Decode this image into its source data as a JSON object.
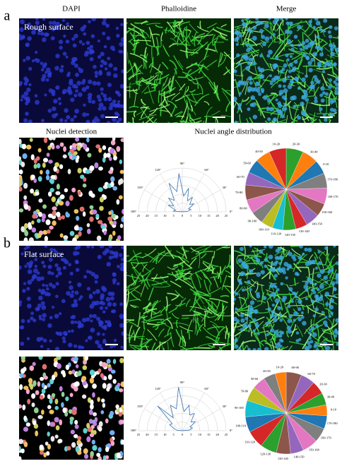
{
  "column_titles": [
    "DAPI",
    "Phalloidine",
    "Merge"
  ],
  "detection_title": "Nuclei detection",
  "distribution_title": "Nuclei angle distribution",
  "panels": [
    {
      "letter": "a",
      "image_label": "Rough surface",
      "polar": {
        "type": "polar-line",
        "color": "#4a7fb5",
        "angles": [
          5,
          15,
          25,
          35,
          45,
          55,
          65,
          75,
          85,
          95,
          105,
          115,
          125,
          135,
          145,
          155,
          165,
          175
        ],
        "values": [
          3,
          5,
          4,
          8,
          6,
          10,
          7,
          14,
          9,
          22,
          12,
          18,
          8,
          11,
          6,
          9,
          4,
          5
        ],
        "rlim": [
          0,
          25
        ],
        "rticks": [
          0,
          5,
          10,
          15,
          20,
          25
        ],
        "angle_ticks": [
          {
            "value": 0,
            "label": "0°"
          },
          {
            "value": 30,
            "label": "30°"
          },
          {
            "value": 60,
            "label": "60°"
          },
          {
            "value": 90,
            "label": "90°"
          },
          {
            "value": 120,
            "label": "120°"
          },
          {
            "value": 150,
            "label": "150°"
          },
          {
            "value": 180,
            "label": "180°"
          }
        ]
      },
      "pie": {
        "type": "pie",
        "categories": [
          "20-30",
          "30-40",
          "0-10",
          "170-180",
          "160-170",
          "150-160",
          "140-150",
          "130-140",
          "120-130",
          "110-120",
          "100-110",
          "90-100",
          "80-90",
          "70-80",
          "60-70",
          "50-60",
          "40-50",
          "10-20"
        ],
        "values": [
          16,
          15,
          13,
          14,
          15,
          12,
          13,
          11,
          12,
          10,
          11,
          12,
          13,
          14,
          12,
          13,
          14,
          16
        ],
        "colors": [
          "#2ca02c",
          "#ff7f0e",
          "#1f77b4",
          "#7f7f7f",
          "#e377c2",
          "#8c564b",
          "#9467bd",
          "#d62728",
          "#2ca02c",
          "#17becf",
          "#bcbd22",
          "#7f7f7f",
          "#e377c2",
          "#8c564b",
          "#9467bd",
          "#1f77b4",
          "#ff7f0e",
          "#d62728"
        ]
      }
    },
    {
      "letter": "b",
      "image_label": "Flat surface",
      "polar": {
        "type": "polar-line",
        "color": "#4a7fb5",
        "angles": [
          5,
          15,
          25,
          35,
          45,
          55,
          65,
          75,
          85,
          95,
          105,
          115,
          125,
          135,
          145,
          155,
          165,
          175
        ],
        "values": [
          4,
          6,
          5,
          9,
          7,
          12,
          10,
          15,
          11,
          25,
          13,
          16,
          9,
          20,
          7,
          8,
          5,
          3
        ],
        "rlim": [
          0,
          25
        ],
        "rticks": [
          0,
          5,
          10,
          15,
          20,
          25
        ],
        "angle_ticks": [
          {
            "value": 0,
            "label": "0°"
          },
          {
            "value": 30,
            "label": "30°"
          },
          {
            "value": 60,
            "label": "60°"
          },
          {
            "value": 90,
            "label": "90°"
          },
          {
            "value": 120,
            "label": "120°"
          },
          {
            "value": 150,
            "label": "150°"
          },
          {
            "value": 180,
            "label": "180°"
          }
        ]
      },
      "pie": {
        "type": "pie",
        "categories": [
          "80-90",
          "60-70",
          "20-30",
          "30-40",
          "0-10",
          "170-180",
          "160-170",
          "150-160",
          "140-150",
          "130-140",
          "120-130",
          "110-120",
          "100-110",
          "90-100",
          "70-80",
          "50-60",
          "40-50",
          "10-20"
        ],
        "values": [
          14,
          13,
          12,
          11,
          10,
          12,
          13,
          14,
          12,
          13,
          15,
          16,
          14,
          15,
          13,
          12,
          11,
          10
        ],
        "colors": [
          "#8c564b",
          "#9467bd",
          "#d62728",
          "#2ca02c",
          "#ff7f0e",
          "#1f77b4",
          "#7f7f7f",
          "#e377c2",
          "#9467bd",
          "#8c564b",
          "#2ca02c",
          "#d62728",
          "#1f77b4",
          "#17becf",
          "#bcbd22",
          "#e377c2",
          "#7f7f7f",
          "#ff7f0e"
        ]
      }
    }
  ]
}
